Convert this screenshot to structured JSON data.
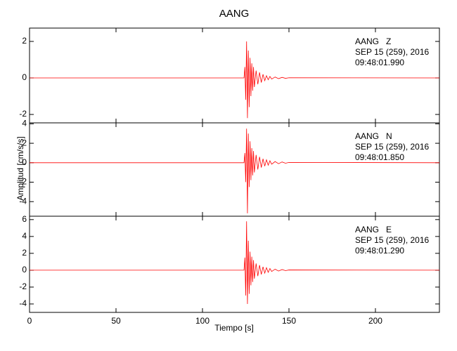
{
  "chart_data": {
    "type": "line",
    "title": "AANG",
    "xlabel": "Tiempo [s]",
    "ylabel": "Amplitud [cm/s/s]",
    "x": [
      0,
      124,
      124.5,
      125,
      125.5,
      126,
      126.5,
      127,
      127.5,
      128,
      128.5,
      129,
      129.5,
      130,
      131,
      132,
      133,
      134,
      135,
      136,
      137,
      138,
      139,
      140,
      142,
      144,
      146,
      148,
      150,
      237
    ],
    "xlim": [
      0,
      237
    ],
    "xticks": [
      0,
      50,
      100,
      150,
      200
    ],
    "panels": [
      {
        "annotations": [
          "AANG   Z",
          "SEP 15 (259), 2016",
          "09:48:01.990"
        ],
        "ylim": [
          -2.46,
          2.73
        ],
        "yticks": [
          -2,
          0,
          2
        ],
        "series": [
          {
            "color": "#ff0000",
            "values": [
              0,
              0,
              0.6,
              -1.2,
              2.0,
              -2.2,
              1.5,
              -1.6,
              1.1,
              -1.0,
              0.8,
              -0.7,
              0.6,
              -0.5,
              0.4,
              -0.35,
              0.3,
              -0.25,
              0.2,
              -0.15,
              0.12,
              -0.1,
              0.08,
              -0.06,
              0.05,
              -0.04,
              0.03,
              -0.02,
              0.01,
              0
            ]
          }
        ]
      },
      {
        "annotations": [
          "AANG   N",
          "SEP 15 (259), 2016",
          "09:48:01.850"
        ],
        "ylim": [
          -5.5,
          4.1
        ],
        "yticks": [
          -4,
          -2,
          0,
          2,
          4
        ],
        "series": [
          {
            "color": "#ff0000",
            "values": [
              0,
              0,
              1.0,
              -2.0,
              3.5,
              -5.2,
              3.0,
              -2.5,
              2.2,
              -1.8,
              1.5,
              -1.3,
              1.2,
              -1.0,
              0.8,
              -0.7,
              0.6,
              -0.5,
              0.4,
              -0.35,
              0.3,
              -0.25,
              0.2,
              -0.15,
              0.12,
              -0.1,
              0.08,
              -0.05,
              0.03,
              0
            ]
          }
        ]
      },
      {
        "annotations": [
          "AANG   E",
          "SEP 15 (259), 2016",
          "09:48:01.290"
        ],
        "ylim": [
          -5.0,
          6.4
        ],
        "yticks": [
          -4,
          -2,
          0,
          2,
          4,
          6
        ],
        "series": [
          {
            "color": "#ff0000",
            "values": [
              0,
              0,
              1.5,
              -3.0,
              5.8,
              -4.0,
              3.5,
              -2.8,
              2.2,
              -1.8,
              1.6,
              -1.4,
              1.2,
              -1.0,
              0.8,
              -0.7,
              0.6,
              -0.5,
              0.4,
              -0.35,
              0.3,
              -0.25,
              0.2,
              -0.15,
              0.12,
              -0.1,
              0.08,
              -0.05,
              0.03,
              0
            ]
          }
        ]
      }
    ]
  }
}
